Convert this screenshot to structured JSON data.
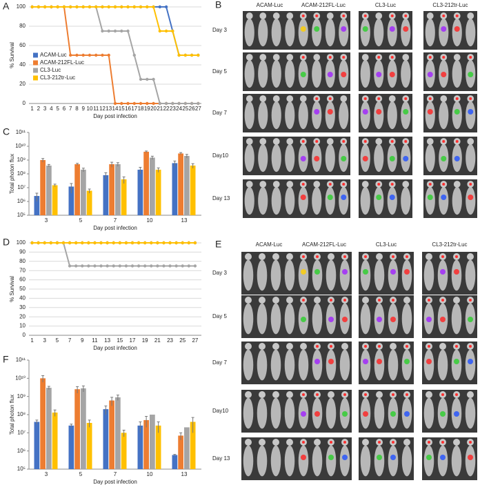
{
  "chart_data": [
    {
      "type": "line",
      "panel": "A",
      "ylabel": "% Survival",
      "xlabel": "Day post infection",
      "x": [
        1,
        2,
        3,
        4,
        5,
        6,
        7,
        8,
        9,
        10,
        11,
        12,
        13,
        14,
        15,
        16,
        17,
        18,
        19,
        20,
        21,
        22,
        23,
        24,
        25,
        26,
        27
      ],
      "xlim": [
        0.5,
        27.5
      ],
      "xticks": [
        1,
        2,
        3,
        4,
        5,
        6,
        7,
        8,
        9,
        10,
        11,
        12,
        13,
        14,
        15,
        16,
        17,
        18,
        19,
        20,
        21,
        22,
        23,
        24,
        25,
        26,
        27
      ],
      "ylim": [
        0,
        100
      ],
      "yticks": [
        0,
        20,
        40,
        60,
        80,
        100
      ],
      "grid": true,
      "legend": "left",
      "series": [
        {
          "name": "ACAM-Luc",
          "color": "#4472c4",
          "values": [
            100,
            100,
            100,
            100,
            100,
            100,
            100,
            100,
            100,
            100,
            100,
            100,
            100,
            100,
            100,
            100,
            100,
            100,
            100,
            100,
            100,
            100,
            75,
            50,
            50,
            50,
            50
          ]
        },
        {
          "name": "ACAM-212FL-Luc",
          "color": "#ed7d31",
          "values": [
            100,
            100,
            100,
            100,
            100,
            100,
            50,
            50,
            50,
            50,
            50,
            50,
            50,
            0,
            0,
            0,
            0,
            0,
            0,
            0,
            0,
            0,
            0,
            0,
            0,
            0,
            0
          ]
        },
        {
          "name": "CL3-Luc",
          "color": "#a5a5a5",
          "values": [
            100,
            100,
            100,
            100,
            100,
            100,
            100,
            100,
            100,
            100,
            100,
            75,
            75,
            75,
            75,
            75,
            50,
            25,
            25,
            25,
            0,
            0,
            0,
            0,
            0,
            0,
            0
          ]
        },
        {
          "name": "CL3-212tr-Luc",
          "color": "#ffc000",
          "values": [
            100,
            100,
            100,
            100,
            100,
            100,
            100,
            100,
            100,
            100,
            100,
            100,
            100,
            100,
            100,
            100,
            100,
            100,
            100,
            100,
            75,
            75,
            75,
            50,
            50,
            50,
            50
          ]
        }
      ]
    },
    {
      "type": "bar",
      "panel": "C",
      "ylabel": "Total photon flux",
      "xlabel": "Day post infection",
      "log": true,
      "categories": [
        "3",
        "5",
        "7",
        "10",
        "13"
      ],
      "ylim": [
        100000,
        100000000000
      ],
      "yticks": [
        {
          "value": 100000,
          "label": "10⁵"
        },
        {
          "value": 1000000,
          "label": "10⁶"
        },
        {
          "value": 10000000,
          "label": "10⁷"
        },
        {
          "value": 100000000,
          "label": "10⁸"
        },
        {
          "value": 1000000000,
          "label": "10⁹"
        },
        {
          "value": 10000000000,
          "label": "10¹⁰"
        },
        {
          "value": 100000000000,
          "label": "10¹¹"
        }
      ],
      "series": [
        {
          "color": "#4472c4",
          "values": [
            2500000,
            12000000,
            80000000,
            200000000,
            600000000
          ],
          "errors": [
            1500000,
            8000000,
            40000000,
            100000000,
            250000000
          ]
        },
        {
          "color": "#ed7d31",
          "values": [
            1000000000,
            500000000,
            500000000,
            4000000000,
            3000000000
          ],
          "errors": [
            300000000,
            80000000,
            200000000,
            500000000,
            500000000
          ]
        },
        {
          "color": "#a5a5a5",
          "values": [
            400000000,
            200000000,
            500000000,
            1500000000,
            2000000000
          ],
          "errors": [
            80000000,
            60000000,
            150000000,
            400000000,
            600000000
          ]
        },
        {
          "color": "#ffc000",
          "values": [
            15000000,
            6000000,
            40000000,
            200000000,
            400000000
          ],
          "errors": [
            3000000,
            2000000,
            20000000,
            70000000,
            150000000
          ]
        }
      ]
    },
    {
      "type": "line",
      "panel": "D",
      "ylabel": "% Survival",
      "xlabel": "Day post infection",
      "x": [
        1,
        2,
        3,
        4,
        5,
        6,
        7,
        8,
        9,
        10,
        11,
        12,
        13,
        14,
        15,
        16,
        17,
        18,
        19,
        20,
        21,
        22,
        23,
        24,
        25,
        26,
        27
      ],
      "xlim": [
        0.5,
        28
      ],
      "xticks": [
        1,
        3,
        5,
        7,
        9,
        11,
        13,
        15,
        17,
        19,
        21,
        23,
        25,
        27
      ],
      "ylim": [
        0,
        100
      ],
      "yticks": [
        0,
        10,
        20,
        30,
        40,
        50,
        60,
        70,
        80,
        90,
        100
      ],
      "grid": true,
      "series": [
        {
          "color": "#4472c4",
          "values": [
            100,
            100,
            100,
            100,
            100,
            100,
            100,
            100,
            100,
            100,
            100,
            100,
            100,
            100,
            100,
            100,
            100,
            100,
            100,
            100,
            100,
            100,
            100,
            100,
            100,
            100,
            100
          ]
        },
        {
          "color": "#ed7d31",
          "values": [
            100,
            100,
            100,
            100,
            100,
            100,
            100,
            100,
            100,
            100,
            100,
            100,
            100,
            100,
            100,
            100,
            100,
            100,
            100,
            100,
            100,
            100,
            100,
            100,
            100,
            100,
            100
          ]
        },
        {
          "color": "#a5a5a5",
          "values": [
            100,
            100,
            100,
            100,
            100,
            100,
            75,
            75,
            75,
            75,
            75,
            75,
            75,
            75,
            75,
            75,
            75,
            75,
            75,
            75,
            75,
            75,
            75,
            75,
            75,
            75,
            75
          ]
        },
        {
          "color": "#ffc000",
          "values": [
            100,
            100,
            100,
            100,
            100,
            100,
            100,
            100,
            100,
            100,
            100,
            100,
            100,
            100,
            100,
            100,
            100,
            100,
            100,
            100,
            100,
            100,
            100,
            100,
            100,
            100,
            100
          ]
        }
      ]
    },
    {
      "type": "bar",
      "panel": "F",
      "ylabel": "Total photon flux",
      "xlabel": "Day post infection",
      "log": true,
      "categories": [
        "3",
        "5",
        "7",
        "10",
        "13"
      ],
      "ylim": [
        100000,
        100000000000
      ],
      "yticks": [
        {
          "value": 100000,
          "label": "10⁵"
        },
        {
          "value": 1000000,
          "label": "10⁶"
        },
        {
          "value": 10000000,
          "label": "10⁷"
        },
        {
          "value": 100000000,
          "label": "10⁸"
        },
        {
          "value": 1000000000,
          "label": "10⁹"
        },
        {
          "value": 10000000000,
          "label": "10¹⁰"
        },
        {
          "value": 100000000000,
          "label": "10¹¹"
        }
      ],
      "series": [
        {
          "color": "#4472c4",
          "values": [
            40000000,
            25000000,
            200000000,
            25000000,
            600000
          ],
          "errors": [
            10000000,
            5000000,
            100000000,
            15000000,
            50000
          ]
        },
        {
          "color": "#ed7d31",
          "values": [
            10000000000,
            2500000000,
            600000000,
            50000000,
            7000000
          ],
          "errors": [
            4000000000,
            1000000000,
            300000000,
            30000000,
            3000000
          ]
        },
        {
          "color": "#a5a5a5",
          "values": [
            3000000000,
            2800000000,
            900000000,
            100000000,
            20000000
          ],
          "errors": [
            600000000,
            1000000000,
            300000000,
            0,
            0
          ]
        },
        {
          "color": "#ffc000",
          "values": [
            130000000,
            35000000,
            10000000,
            25000000,
            40000000
          ],
          "errors": [
            50000000,
            15000000,
            4000000,
            15000000,
            30000000
          ]
        }
      ]
    }
  ],
  "image_panels": [
    {
      "panel": "B",
      "columns": [
        "ACAM-Luc",
        "ACAM-212FL-Luc",
        "CL3-Luc",
        "CL3-212tr-Luc"
      ],
      "rows": [
        "Day 3",
        "Day 5",
        "Day 7",
        "Day10",
        "Day 13"
      ]
    },
    {
      "panel": "E",
      "columns": [
        "ACAM-Luc",
        "ACAM-212FL-Luc",
        "CL3-Luc",
        "CL3-212tr-Luc"
      ],
      "rows": [
        "Day 3",
        "Day 5",
        "Day 7",
        "Day10",
        "Day 13"
      ]
    }
  ]
}
